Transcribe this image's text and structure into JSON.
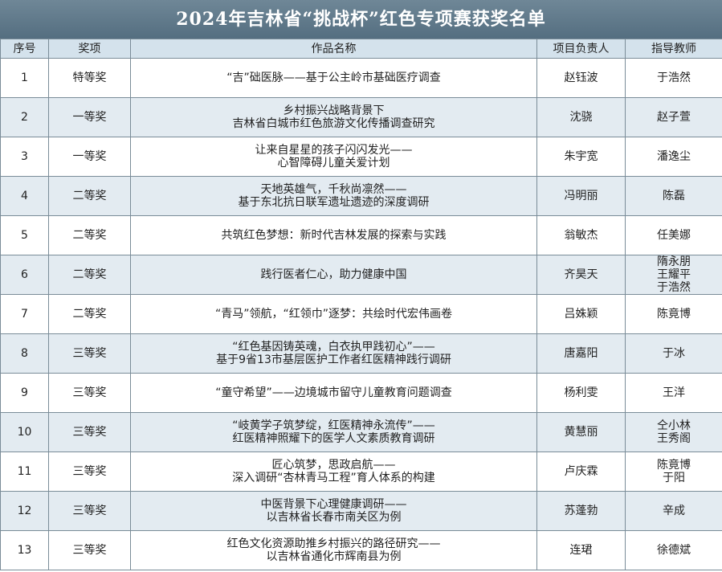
{
  "header": {
    "title": "2024年吉林省“挑战杯”红色专项赛获奖名单"
  },
  "table": {
    "columns": [
      "序号",
      "奖项",
      "作品名称",
      "项目负责人",
      "指导教师"
    ],
    "rows": [
      {
        "no": "1",
        "award": "特等奖",
        "title": [
          "“吉”础医脉——基于公主岭市基础医疗调查"
        ],
        "leader": "赵钰波",
        "teacher": [
          "于浩然"
        ]
      },
      {
        "no": "2",
        "award": "一等奖",
        "title": [
          "乡村振兴战略背景下",
          "吉林省白城市红色旅游文化传播调查研究"
        ],
        "leader": "沈骁",
        "teacher": [
          "赵子萱"
        ]
      },
      {
        "no": "3",
        "award": "一等奖",
        "title": [
          "让来自星星的孩子闪闪发光——",
          "心智障碍儿童关爱计划"
        ],
        "leader": "朱宇宽",
        "teacher": [
          "潘逸尘"
        ]
      },
      {
        "no": "4",
        "award": "二等奖",
        "title": [
          "天地英雄气，千秋尚凛然——",
          "基于东北抗日联军遗址遗迹的深度调研"
        ],
        "leader": "冯明丽",
        "teacher": [
          "陈磊"
        ]
      },
      {
        "no": "5",
        "award": "二等奖",
        "title": [
          "共筑红色梦想：新时代吉林发展的探索与实践"
        ],
        "leader": "翁敏杰",
        "teacher": [
          "任美娜"
        ]
      },
      {
        "no": "6",
        "award": "二等奖",
        "title": [
          "践行医者仁心，助力健康中国"
        ],
        "leader": "齐昊天",
        "teacher": [
          "隋永朋",
          "王耀平",
          "于浩然"
        ]
      },
      {
        "no": "7",
        "award": "二等奖",
        "title": [
          "“青马”领航，“红领巾”逐梦：共绘时代宏伟画卷"
        ],
        "leader": "吕姝颖",
        "teacher": [
          "陈竟博"
        ]
      },
      {
        "no": "8",
        "award": "三等奖",
        "title": [
          "“红色基因铸英魂，白衣执甲践初心”——",
          "基于9省13市基层医护工作者红医精神践行调研"
        ],
        "leader": "唐嘉阳",
        "teacher": [
          "于冰"
        ]
      },
      {
        "no": "9",
        "award": "三等奖",
        "title": [
          "“童守希望”——边境城市留守儿童教育问题调查"
        ],
        "leader": "杨利雯",
        "teacher": [
          "王洋"
        ]
      },
      {
        "no": "10",
        "award": "三等奖",
        "title": [
          "“岐黄学子筑梦绽，红医精神永流传”——",
          "红医精神照耀下的医学人文素质教育调研"
        ],
        "leader": "黄慧丽",
        "teacher": [
          "仝小林",
          "王秀阁"
        ]
      },
      {
        "no": "11",
        "award": "三等奖",
        "title": [
          "匠心筑梦，思政启航——",
          "深入调研“杏林青马工程”育人体系的构建"
        ],
        "leader": "卢庆霖",
        "teacher": [
          "陈竟博",
          "于阳"
        ]
      },
      {
        "no": "12",
        "award": "三等奖",
        "title": [
          "中医背景下心理健康调研——",
          "以吉林省长春市南关区为例"
        ],
        "leader": "苏蓬勃",
        "teacher": [
          "辛成"
        ]
      },
      {
        "no": "13",
        "award": "三等奖",
        "title": [
          "红色文化资源助推乡村振兴的路径研究——",
          "以吉林省通化市辉南县为例"
        ],
        "leader": "连珺",
        "teacher": [
          "徐德斌"
        ]
      }
    ]
  }
}
